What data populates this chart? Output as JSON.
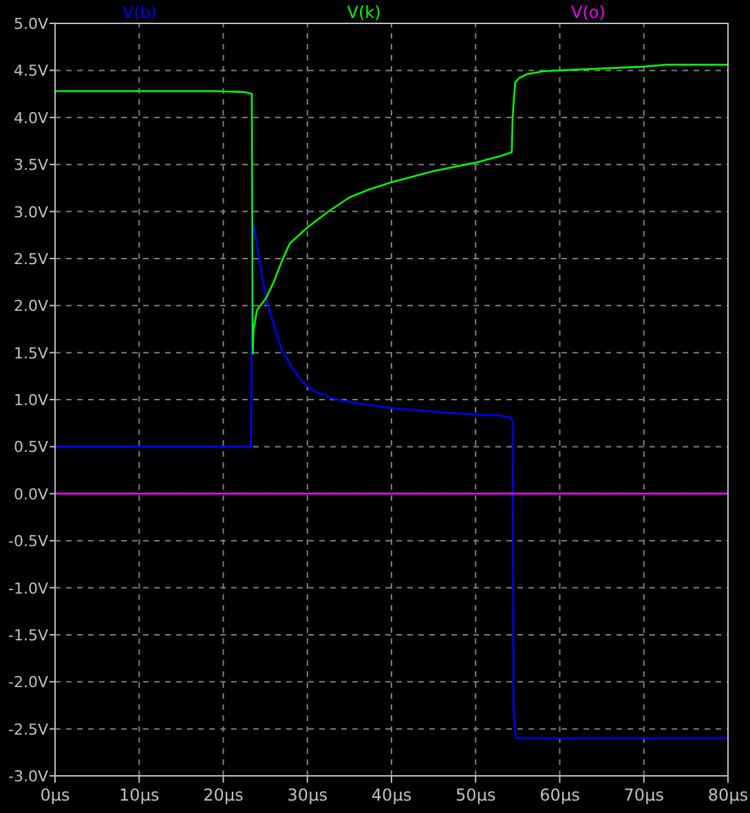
{
  "chart_data": {
    "type": "line",
    "legend": "top",
    "grid": true,
    "line_style": "solid",
    "marker": "none",
    "xlim": [
      0,
      80
    ],
    "ylim": [
      -3,
      5
    ],
    "xticks": [
      {
        "value": 0,
        "label": "0µs"
      },
      {
        "value": 10,
        "label": "10µs"
      },
      {
        "value": 20,
        "label": "20µs"
      },
      {
        "value": 30,
        "label": "30µs"
      },
      {
        "value": 40,
        "label": "40µs"
      },
      {
        "value": 50,
        "label": "50µs"
      },
      {
        "value": 60,
        "label": "60µs"
      },
      {
        "value": 70,
        "label": "70µs"
      },
      {
        "value": 80,
        "label": "80µs"
      }
    ],
    "yticks": [
      {
        "value": -3,
        "label": "-3.0V"
      },
      {
        "value": -2.5,
        "label": "-2.5V"
      },
      {
        "value": -2,
        "label": "-2.0V"
      },
      {
        "value": -1.5,
        "label": "-1.5V"
      },
      {
        "value": -1,
        "label": "-1.0V"
      },
      {
        "value": -0.5,
        "label": "-0.5V"
      },
      {
        "value": 0,
        "label": "0.0V"
      },
      {
        "value": 0.5,
        "label": "0.5V"
      },
      {
        "value": 1,
        "label": "1.0V"
      },
      {
        "value": 1.5,
        "label": "1.5V"
      },
      {
        "value": 2,
        "label": "2.0V"
      },
      {
        "value": 2.5,
        "label": "2.5V"
      },
      {
        "value": 3,
        "label": "3.0V"
      },
      {
        "value": 3.5,
        "label": "3.5V"
      },
      {
        "value": 4,
        "label": "4.0V"
      },
      {
        "value": 4.5,
        "label": "4.5V"
      },
      {
        "value": 5,
        "label": "5.0V"
      }
    ],
    "series": [
      {
        "name": "V(b)",
        "color": "#0000ff",
        "x": [
          0,
          23.3,
          23.5,
          24,
          24.6,
          25.3,
          26.2,
          27,
          28.1,
          29.3,
          30.6,
          33,
          36,
          40,
          45,
          50,
          53,
          54.3,
          54.4,
          54.5,
          54.8,
          60,
          70,
          80
        ],
        "values": [
          0.5,
          0.5,
          2.91,
          2.65,
          2.32,
          2.0,
          1.74,
          1.52,
          1.35,
          1.2,
          1.1,
          1.01,
          0.96,
          0.91,
          0.87,
          0.84,
          0.83,
          0.8,
          0.76,
          -2.25,
          -2.6,
          -2.6,
          -2.6,
          -2.6
        ]
      },
      {
        "name": "V(k)",
        "color": "#00ff00",
        "x": [
          0,
          19,
          22.5,
          23.4,
          23.5,
          23.6,
          24,
          25.1,
          26,
          27,
          27.9,
          30,
          32.5,
          35,
          37.5,
          40,
          45,
          50,
          53,
          54.3,
          54.4,
          54.7,
          55.2,
          56.1,
          58,
          60,
          65,
          70,
          72.5,
          80
        ],
        "values": [
          4.28,
          4.28,
          4.27,
          4.25,
          1.49,
          1.74,
          1.95,
          2.08,
          2.25,
          2.48,
          2.66,
          2.83,
          3.0,
          3.15,
          3.24,
          3.31,
          3.43,
          3.52,
          3.59,
          3.63,
          4.0,
          4.37,
          4.42,
          4.46,
          4.49,
          4.5,
          4.52,
          4.54,
          4.56,
          4.56
        ]
      },
      {
        "name": "V(o)",
        "color": "#ff00ff",
        "x": [
          0,
          80
        ],
        "values": [
          0,
          0
        ]
      }
    ]
  }
}
